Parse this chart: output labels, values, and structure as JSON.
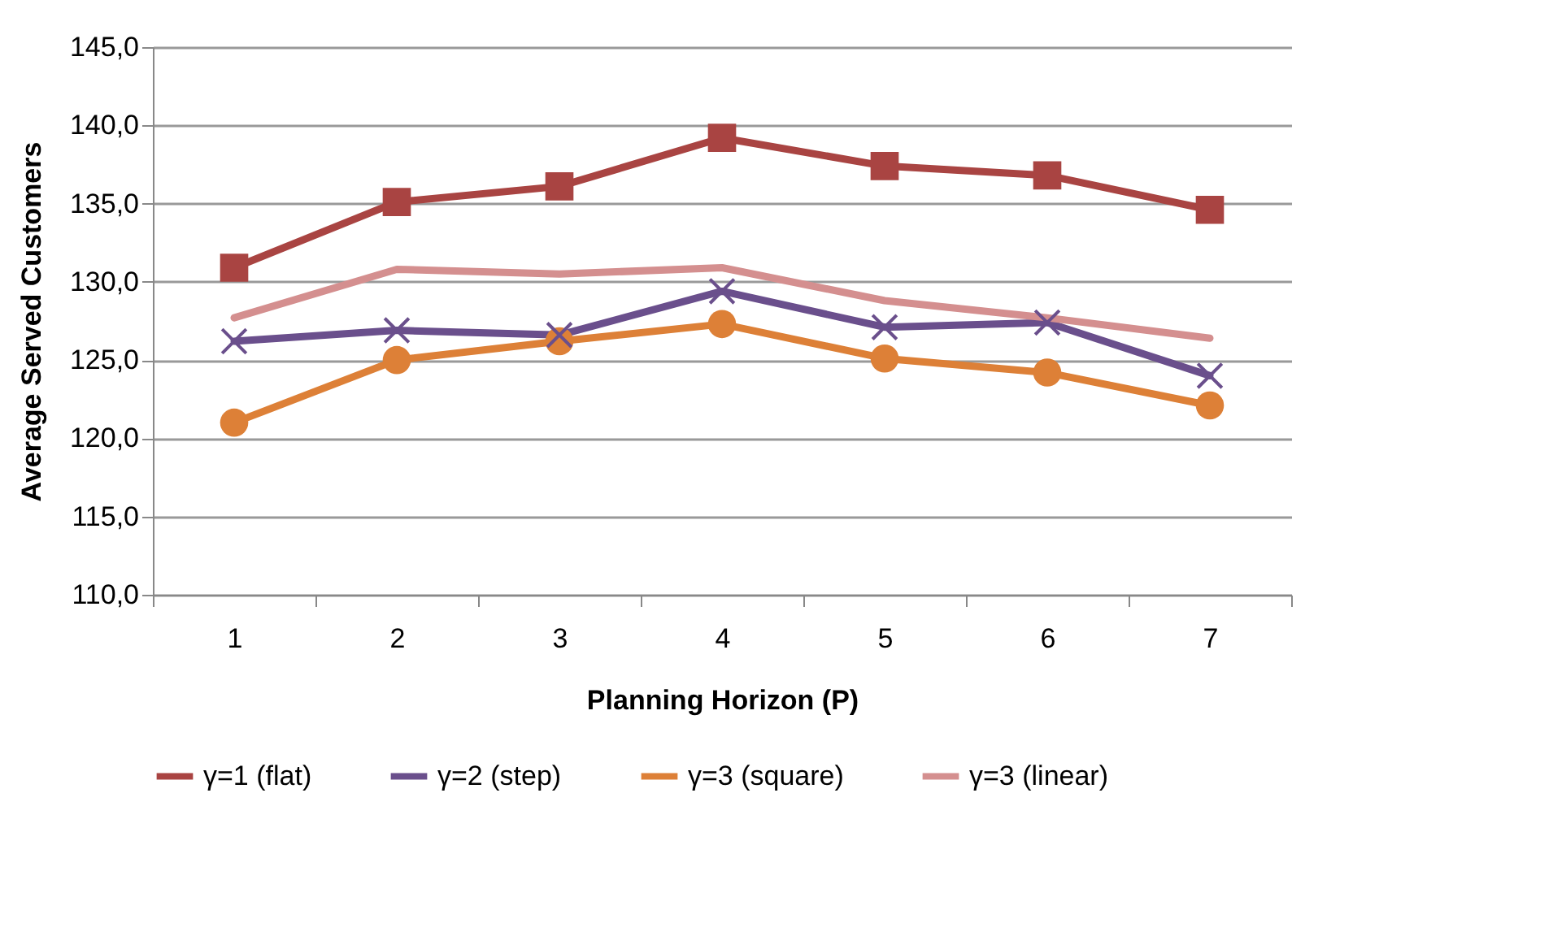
{
  "chart_data": {
    "type": "line",
    "xlabel": "Planning Horizon (P)",
    "ylabel": "Average Served Customers",
    "categories": [
      "1",
      "2",
      "3",
      "4",
      "5",
      "6",
      "7"
    ],
    "ylim": [
      110,
      145
    ],
    "yticks": [
      {
        "value": 110,
        "label": "110,0"
      },
      {
        "value": 115,
        "label": "115,0"
      },
      {
        "value": 120,
        "label": "120,0"
      },
      {
        "value": 125,
        "label": "125,0"
      },
      {
        "value": 130,
        "label": "130,0"
      },
      {
        "value": 135,
        "label": "135,0"
      },
      {
        "value": 140,
        "label": "140,0"
      },
      {
        "value": 145,
        "label": "145,0"
      }
    ],
    "grid": "y",
    "legend": "bottom",
    "line_style": "solid",
    "series": [
      {
        "name": "γ=1 (flat)",
        "color": "#a94442",
        "marker": "square",
        "values": [
          130.9,
          135.1,
          136.1,
          139.2,
          137.4,
          136.8,
          134.6
        ]
      },
      {
        "name": "γ=2 (step)",
        "color": "#6a4f8c",
        "marker": "cross",
        "values": [
          126.2,
          126.9,
          126.6,
          129.4,
          127.1,
          127.4,
          124.0
        ]
      },
      {
        "name": "γ=3 (square)",
        "color": "#dd8037",
        "marker": "circle",
        "values": [
          121.0,
          125.0,
          126.2,
          127.3,
          125.1,
          124.2,
          122.1
        ]
      },
      {
        "name": "γ=3 (linear)",
        "color": "#d48f8f",
        "marker": "none",
        "values": [
          127.7,
          130.8,
          130.5,
          130.9,
          128.8,
          127.7,
          126.4
        ]
      }
    ]
  }
}
